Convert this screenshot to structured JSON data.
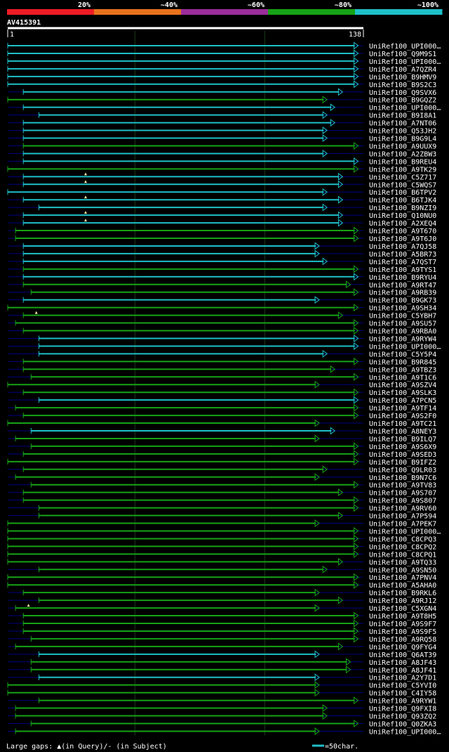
{
  "chart_data": {
    "type": "alignment-overview",
    "query": {
      "name": "AV415391",
      "start": 1,
      "end": 138
    },
    "colors": {
      "background": "#000000",
      "row_line": "#000080",
      "gridline": "#1a3a1a",
      "ruler": "#ffffff",
      "band_20": "#ee1c25",
      "band_40": "#e8731c",
      "band_60": "#9b2d9b",
      "band_80": "#16a316",
      "band_100": "#1ec0c8"
    },
    "identity_legend": [
      {
        "label": "20%",
        "color": "#ee1c25"
      },
      {
        "label": "~40%",
        "color": "#e8731c"
      },
      {
        "label": "~60%",
        "color": "#9b2d9b"
      },
      {
        "label": "~80%",
        "color": "#16a316"
      },
      {
        "label": "~100%",
        "color": "#1ec0c8"
      }
    ],
    "footer": {
      "gaps_text": "Large gaps: ▲(in Query)/- (in Subject)",
      "scale_text": "=50char."
    },
    "hits": [
      {
        "name": "UniRef100_UPI000…",
        "start": 1,
        "end": 136,
        "band": "100",
        "marks": []
      },
      {
        "name": "UniRef100_Q9M9S1",
        "start": 1,
        "end": 136,
        "band": "100",
        "marks": []
      },
      {
        "name": "UniRef100_UPI000…",
        "start": 1,
        "end": 136,
        "band": "100",
        "marks": []
      },
      {
        "name": "UniRef100_A7QZR4",
        "start": 1,
        "end": 136,
        "band": "100",
        "marks": []
      },
      {
        "name": "UniRef100_B9HMV9",
        "start": 1,
        "end": 136,
        "band": "100",
        "marks": []
      },
      {
        "name": "UniRef100_B9S2C3",
        "start": 1,
        "end": 136,
        "band": "100",
        "marks": []
      },
      {
        "name": "UniRef100_Q9SVX6",
        "start": 7,
        "end": 130,
        "band": "100",
        "marks": []
      },
      {
        "name": "UniRef100_B9GQZ2",
        "start": 1,
        "end": 124,
        "band": "80",
        "marks": []
      },
      {
        "name": "UniRef100_UPI000…",
        "start": 7,
        "end": 127,
        "band": "100",
        "marks": []
      },
      {
        "name": "UniRef100_B9I8A1",
        "start": 13,
        "end": 124,
        "band": "100",
        "marks": []
      },
      {
        "name": "UniRef100_A7NT06",
        "start": 7,
        "end": 127,
        "band": "100",
        "marks": []
      },
      {
        "name": "UniRef100_Q53JH2",
        "start": 7,
        "end": 124,
        "band": "100",
        "marks": []
      },
      {
        "name": "UniRef100_B9G9L4",
        "start": 7,
        "end": 124,
        "band": "100",
        "marks": []
      },
      {
        "name": "UniRef100_A9UUX9",
        "start": 7,
        "end": 136,
        "band": "80",
        "marks": []
      },
      {
        "name": "UniRef100_A2ZBW3",
        "start": 7,
        "end": 124,
        "band": "100",
        "marks": []
      },
      {
        "name": "UniRef100_B9REU4",
        "start": 7,
        "end": 136,
        "band": "100",
        "marks": []
      },
      {
        "name": "UniRef100_A9TK29",
        "start": 1,
        "end": 136,
        "band": "80",
        "marks": []
      },
      {
        "name": "UniRef100_C5Z717",
        "start": 7,
        "end": 130,
        "band": "100",
        "marks": [
          31
        ]
      },
      {
        "name": "UniRef100_C5WQS7",
        "start": 7,
        "end": 130,
        "band": "100",
        "marks": [
          31
        ]
      },
      {
        "name": "UniRef100_B6TPV2",
        "start": 1,
        "end": 124,
        "band": "100",
        "marks": []
      },
      {
        "name": "UniRef100_B6TJK4",
        "start": 7,
        "end": 130,
        "band": "100",
        "marks": [
          31
        ]
      },
      {
        "name": "UniRef100_B9NZI9",
        "start": 13,
        "end": 124,
        "band": "100",
        "marks": []
      },
      {
        "name": "UniRef100_Q10NU0",
        "start": 7,
        "end": 130,
        "band": "100",
        "marks": [
          31
        ]
      },
      {
        "name": "UniRef100_A2XEQ4",
        "start": 7,
        "end": 130,
        "band": "100",
        "marks": [
          31
        ]
      },
      {
        "name": "UniRef100_A9T670",
        "start": 4,
        "end": 136,
        "band": "80",
        "marks": []
      },
      {
        "name": "UniRef100_A9T6J0",
        "start": 4,
        "end": 136,
        "band": "80",
        "marks": []
      },
      {
        "name": "UniRef100_A7QJ58",
        "start": 7,
        "end": 121,
        "band": "100",
        "marks": []
      },
      {
        "name": "UniRef100_A5BR73",
        "start": 7,
        "end": 121,
        "band": "100",
        "marks": []
      },
      {
        "name": "UniRef100_A7QST7",
        "start": 7,
        "end": 124,
        "band": "100",
        "marks": []
      },
      {
        "name": "UniRef100_A9TYS1",
        "start": 7,
        "end": 136,
        "band": "80",
        "marks": []
      },
      {
        "name": "UniRef100_B9RYU4",
        "start": 7,
        "end": 136,
        "band": "100",
        "marks": []
      },
      {
        "name": "UniRef100_A9RT47",
        "start": 7,
        "end": 133,
        "band": "80",
        "marks": []
      },
      {
        "name": "UniRef100_A9RB39",
        "start": 10,
        "end": 136,
        "band": "80",
        "marks": []
      },
      {
        "name": "UniRef100_B9GK73",
        "start": 7,
        "end": 121,
        "band": "100",
        "marks": []
      },
      {
        "name": "UniRef100_A9SH34",
        "start": 1,
        "end": 136,
        "band": "80",
        "marks": []
      },
      {
        "name": "UniRef100_C5YBH7",
        "start": 7,
        "end": 130,
        "band": "80",
        "marks": [
          12
        ]
      },
      {
        "name": "UniRef100_A9SU57",
        "start": 4,
        "end": 136,
        "band": "80",
        "marks": []
      },
      {
        "name": "UniRef100_A9RBA0",
        "start": 7,
        "end": 136,
        "band": "80",
        "marks": []
      },
      {
        "name": "UniRef100_A9RYW4",
        "start": 13,
        "end": 136,
        "band": "100",
        "marks": []
      },
      {
        "name": "UniRef100_UPI000…",
        "start": 13,
        "end": 136,
        "band": "100",
        "marks": []
      },
      {
        "name": "UniRef100_C5Y5P4",
        "start": 13,
        "end": 124,
        "band": "100",
        "marks": []
      },
      {
        "name": "UniRef100_B9R845",
        "start": 7,
        "end": 136,
        "band": "80",
        "marks": []
      },
      {
        "name": "UniRef100_A9TBZ3",
        "start": 7,
        "end": 127,
        "band": "80",
        "marks": []
      },
      {
        "name": "UniRef100_A9T1C6",
        "start": 10,
        "end": 136,
        "band": "80",
        "marks": []
      },
      {
        "name": "UniRef100_A9SZV4",
        "start": 1,
        "end": 121,
        "band": "80",
        "marks": []
      },
      {
        "name": "UniRef100_A9SLK3",
        "start": 7,
        "end": 136,
        "band": "80",
        "marks": []
      },
      {
        "name": "UniRef100_A7PCN5",
        "start": 13,
        "end": 136,
        "band": "100",
        "marks": []
      },
      {
        "name": "UniRef100_A9TF14",
        "start": 4,
        "end": 136,
        "band": "80",
        "marks": []
      },
      {
        "name": "UniRef100_A9S2F0",
        "start": 7,
        "end": 136,
        "band": "80",
        "marks": []
      },
      {
        "name": "UniRef100_A9TC21",
        "start": 1,
        "end": 121,
        "band": "80",
        "marks": []
      },
      {
        "name": "UniRef100_A8NEY3",
        "start": 10,
        "end": 127,
        "band": "100",
        "marks": []
      },
      {
        "name": "UniRef100_B9ILQ7",
        "start": 4,
        "end": 121,
        "band": "80",
        "marks": []
      },
      {
        "name": "UniRef100_A9S6X9",
        "start": 10,
        "end": 136,
        "band": "80",
        "marks": []
      },
      {
        "name": "UniRef100_A9SED3",
        "start": 7,
        "end": 136,
        "band": "80",
        "marks": []
      },
      {
        "name": "UniRef100_B9IFZ2",
        "start": 1,
        "end": 136,
        "band": "80",
        "marks": []
      },
      {
        "name": "UniRef100_Q9LR03",
        "start": 7,
        "end": 124,
        "band": "80",
        "marks": []
      },
      {
        "name": "UniRef100_B9N7C6",
        "start": 4,
        "end": 121,
        "band": "80",
        "marks": []
      },
      {
        "name": "UniRef100_A9TV83",
        "start": 10,
        "end": 136,
        "band": "80",
        "marks": []
      },
      {
        "name": "UniRef100_A9S707",
        "start": 7,
        "end": 130,
        "band": "80",
        "marks": []
      },
      {
        "name": "UniRef100_A9S807",
        "start": 7,
        "end": 136,
        "band": "80",
        "marks": []
      },
      {
        "name": "UniRef100_A9RV60",
        "start": 13,
        "end": 136,
        "band": "80",
        "marks": []
      },
      {
        "name": "UniRef100_A7P594",
        "start": 13,
        "end": 130,
        "band": "80",
        "marks": []
      },
      {
        "name": "UniRef100_A7PEK7",
        "start": 1,
        "end": 121,
        "band": "80",
        "marks": []
      },
      {
        "name": "UniRef100_UPI000…",
        "start": 1,
        "end": 136,
        "band": "80",
        "marks": []
      },
      {
        "name": "UniRef100_C8CPQ3",
        "start": 1,
        "end": 136,
        "band": "80",
        "marks": []
      },
      {
        "name": "UniRef100_C8CPQ2",
        "start": 1,
        "end": 136,
        "band": "80",
        "marks": []
      },
      {
        "name": "UniRef100_C8CPQ1",
        "start": 1,
        "end": 136,
        "band": "80",
        "marks": []
      },
      {
        "name": "UniRef100_A9TQ33",
        "start": 1,
        "end": 130,
        "band": "80",
        "marks": []
      },
      {
        "name": "UniRef100_A9SN50",
        "start": 13,
        "end": 124,
        "band": "80",
        "marks": []
      },
      {
        "name": "UniRef100_A7PNV4",
        "start": 1,
        "end": 136,
        "band": "80",
        "marks": []
      },
      {
        "name": "UniRef100_A5AHA0",
        "start": 1,
        "end": 136,
        "band": "80",
        "marks": []
      },
      {
        "name": "UniRef100_B9RKL6",
        "start": 7,
        "end": 121,
        "band": "80",
        "marks": []
      },
      {
        "name": "UniRef100_A9RJ12",
        "start": 13,
        "end": 130,
        "band": "80",
        "marks": []
      },
      {
        "name": "UniRef100_C5XGN4",
        "start": 4,
        "end": 121,
        "band": "80",
        "marks": [
          9
        ]
      },
      {
        "name": "UniRef100_A9T8H5",
        "start": 7,
        "end": 136,
        "band": "80",
        "marks": []
      },
      {
        "name": "UniRef100_A9S9F7",
        "start": 7,
        "end": 136,
        "band": "80",
        "marks": []
      },
      {
        "name": "UniRef100_A9S9F5",
        "start": 7,
        "end": 136,
        "band": "80",
        "marks": []
      },
      {
        "name": "UniRef100_A9RQ58",
        "start": 10,
        "end": 136,
        "band": "80",
        "marks": []
      },
      {
        "name": "UniRef100_Q9FYG4",
        "start": 4,
        "end": 130,
        "band": "80",
        "marks": []
      },
      {
        "name": "UniRef100_Q6AT39",
        "start": 13,
        "end": 121,
        "band": "100",
        "marks": []
      },
      {
        "name": "UniRef100_A8JF43",
        "start": 10,
        "end": 133,
        "band": "80",
        "marks": []
      },
      {
        "name": "UniRef100_A8JF41",
        "start": 10,
        "end": 133,
        "band": "80",
        "marks": []
      },
      {
        "name": "UniRef100_A2Y7D1",
        "start": 13,
        "end": 121,
        "band": "100",
        "marks": []
      },
      {
        "name": "UniRef100_C5YVI0",
        "start": 1,
        "end": 121,
        "band": "80",
        "marks": []
      },
      {
        "name": "UniRef100_C4IY58",
        "start": 1,
        "end": 121,
        "band": "80",
        "marks": []
      },
      {
        "name": "UniRef100_A9RYW1",
        "start": 13,
        "end": 136,
        "band": "80",
        "marks": []
      },
      {
        "name": "UniRef100_Q9FXI8",
        "start": 4,
        "end": 124,
        "band": "80",
        "marks": []
      },
      {
        "name": "UniRef100_Q93ZQ2",
        "start": 4,
        "end": 124,
        "band": "80",
        "marks": []
      },
      {
        "name": "UniRef100_Q0ZKA3",
        "start": 10,
        "end": 136,
        "band": "80",
        "marks": []
      },
      {
        "name": "UniRef100_UPI000…",
        "start": 4,
        "end": 121,
        "band": "80",
        "marks": []
      }
    ]
  }
}
